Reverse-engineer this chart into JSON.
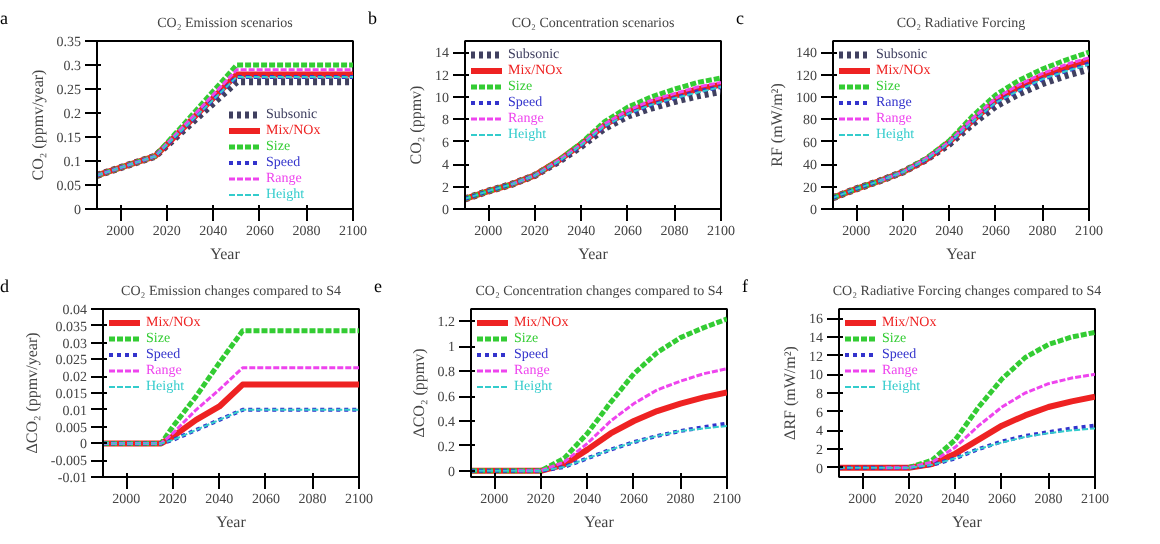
{
  "chart_data": [
    {
      "type": "line",
      "title": "CO₂ Emission scenarios",
      "xlabel": "Year",
      "ylabel": "CO₂ (ppmv/year)",
      "annotations": [
        "a"
      ],
      "legend": "bottom right",
      "x": [
        1990,
        2015,
        2050,
        2100
      ],
      "xlim": [
        1990,
        2100
      ],
      "xticks": [
        2000,
        2020,
        2040,
        2060,
        2080,
        2100
      ],
      "ylim": [
        0,
        0.35
      ],
      "yticks": [
        0,
        0.05,
        0.1,
        0.15,
        0.2,
        0.25,
        0.3,
        0.35
      ],
      "series": [
        {
          "name": "Subsonic",
          "color": "#404060",
          "line_style": "dotted",
          "values": [
            0.07,
            0.11,
            0.265,
            0.265
          ]
        },
        {
          "name": "Mix/NOx",
          "color": "#ee2222",
          "line_style": "solid",
          "values": [
            0.07,
            0.11,
            0.28,
            0.28
          ]
        },
        {
          "name": "Size",
          "color": "#33cc33",
          "line_style": "dashed",
          "values": [
            0.07,
            0.11,
            0.3,
            0.3
          ]
        },
        {
          "name": "Speed",
          "color": "#3333cc",
          "line_style": "dotted",
          "values": [
            0.07,
            0.11,
            0.275,
            0.275
          ]
        },
        {
          "name": "Range",
          "color": "#ee44ee",
          "line_style": "dashed",
          "values": [
            0.07,
            0.11,
            0.29,
            0.29
          ]
        },
        {
          "name": "Height",
          "color": "#33cccc",
          "line_style": "dashed",
          "values": [
            0.07,
            0.11,
            0.275,
            0.275
          ]
        }
      ]
    },
    {
      "type": "line",
      "title": "CO₂ Concentration scenarios",
      "xlabel": "Year",
      "ylabel": "CO₂ (ppmv)",
      "annotations": [
        "b"
      ],
      "legend": "top left",
      "x": [
        1990,
        2000,
        2010,
        2020,
        2030,
        2040,
        2050,
        2060,
        2070,
        2080,
        2090,
        2100
      ],
      "xlim": [
        1990,
        2100
      ],
      "xticks": [
        2000,
        2020,
        2040,
        2060,
        2080,
        2100
      ],
      "ylim": [
        0,
        15
      ],
      "yticks": [
        0,
        2,
        4,
        6,
        8,
        10,
        12,
        14
      ],
      "series": [
        {
          "name": "Subsonic",
          "color": "#404060",
          "line_style": "dotted",
          "values": [
            0.9,
            1.6,
            2.2,
            3.0,
            4.2,
            5.6,
            7.2,
            8.3,
            9.0,
            9.6,
            10.1,
            10.5
          ]
        },
        {
          "name": "Mix/NOx",
          "color": "#ee2222",
          "line_style": "solid",
          "values": [
            0.9,
            1.6,
            2.2,
            3.0,
            4.3,
            5.8,
            7.5,
            8.7,
            9.5,
            10.1,
            10.7,
            11.1
          ]
        },
        {
          "name": "Size",
          "color": "#33cc33",
          "line_style": "dashed",
          "values": [
            0.9,
            1.6,
            2.2,
            3.0,
            4.3,
            5.9,
            7.8,
            9.1,
            10.0,
            10.7,
            11.3,
            11.7
          ]
        },
        {
          "name": "Speed",
          "color": "#3333cc",
          "line_style": "dotted",
          "values": [
            0.9,
            1.6,
            2.2,
            3.0,
            4.2,
            5.7,
            7.4,
            8.5,
            9.3,
            9.9,
            10.5,
            10.9
          ]
        },
        {
          "name": "Range",
          "color": "#ee44ee",
          "line_style": "dashed",
          "values": [
            null,
            null,
            2.2,
            3.0,
            4.3,
            5.8,
            7.6,
            8.8,
            9.7,
            10.3,
            10.9,
            11.3
          ]
        },
        {
          "name": "Height",
          "color": "#33cccc",
          "line_style": "dashed",
          "values": [
            0.9,
            1.6,
            2.2,
            3.0,
            4.2,
            5.7,
            7.4,
            8.5,
            9.3,
            9.9,
            10.4,
            10.9
          ]
        }
      ]
    },
    {
      "type": "line",
      "title": "CO₂ Radiative Forcing",
      "xlabel": "Year",
      "ylabel": "RF (mW/m²)",
      "annotations": [
        "c"
      ],
      "legend": "top left",
      "x": [
        1990,
        2000,
        2010,
        2020,
        2030,
        2040,
        2050,
        2060,
        2070,
        2080,
        2090,
        2100
      ],
      "xlim": [
        1990,
        2100
      ],
      "xticks": [
        2000,
        2020,
        2040,
        2060,
        2080,
        2100
      ],
      "ylim": [
        0,
        150
      ],
      "yticks": [
        0,
        20,
        40,
        60,
        80,
        100,
        120,
        140
      ],
      "series": [
        {
          "name": "Subsonic",
          "color": "#404060",
          "line_style": "dotted",
          "values": [
            10,
            18,
            25,
            33,
            44,
            58,
            76,
            92,
            103,
            112,
            119,
            125
          ]
        },
        {
          "name": "Mix/NOx",
          "color": "#ee2222",
          "line_style": "solid",
          "values": [
            10,
            18,
            25,
            33,
            44,
            60,
            79,
            97,
            109,
            119,
            126,
            133
          ]
        },
        {
          "name": "Size",
          "color": "#33cc33",
          "line_style": "dashed",
          "values": [
            10,
            18,
            25,
            33,
            45,
            61,
            83,
            102,
            115,
            125,
            133,
            140
          ]
        },
        {
          "name": "Range",
          "color": "#3333cc",
          "line_style": "dotted",
          "values": [
            10,
            18,
            25,
            33,
            44,
            59,
            78,
            95,
            106,
            116,
            123,
            130
          ]
        },
        {
          "name": "Range",
          "color": "#ee44ee",
          "line_style": "dashed",
          "values": [
            null,
            null,
            25,
            33,
            45,
            60,
            81,
            99,
            111,
            121,
            129,
            135
          ]
        },
        {
          "name": "Height",
          "color": "#33cccc",
          "line_style": "dashed",
          "values": [
            10,
            18,
            25,
            33,
            44,
            59,
            78,
            95,
            106,
            116,
            123,
            129
          ]
        }
      ]
    },
    {
      "type": "line",
      "title": "CO₂ Emission changes compared to S4",
      "xlabel": "Year",
      "ylabel": "ΔCO₂ (ppmv/year)",
      "annotations": [
        "d"
      ],
      "legend": "top left",
      "x": [
        1990,
        2015,
        2020,
        2030,
        2040,
        2050,
        2100
      ],
      "xlim": [
        1990,
        2100
      ],
      "xticks": [
        2000,
        2020,
        2040,
        2060,
        2080,
        2100
      ],
      "ylim": [
        -0.01,
        0.04
      ],
      "yticks": [
        -0.01,
        -0.005,
        0,
        0.005,
        0.01,
        0.015,
        0.02,
        0.025,
        0.03,
        0.035,
        0.04
      ],
      "series": [
        {
          "name": "Mix/NOx",
          "color": "#ee2222",
          "line_style": "solid",
          "values": [
            0,
            0,
            0.002,
            0.007,
            0.011,
            0.0175,
            0.0175
          ]
        },
        {
          "name": "Size",
          "color": "#33cc33",
          "line_style": "dashed",
          "values": [
            0,
            0,
            0.005,
            0.014,
            0.024,
            0.0335,
            0.0335
          ]
        },
        {
          "name": "Speed",
          "color": "#3333cc",
          "line_style": "dotted",
          "values": [
            0,
            0,
            0.001,
            0.004,
            0.007,
            0.01,
            0.01
          ]
        },
        {
          "name": "Range",
          "color": "#ee44ee",
          "line_style": "dashed",
          "values": [
            0,
            0,
            0.003,
            0.01,
            0.016,
            0.0225,
            0.0225
          ]
        },
        {
          "name": "Height",
          "color": "#33cccc",
          "line_style": "dashed",
          "values": [
            0,
            0,
            0.001,
            0.004,
            0.007,
            0.01,
            0.01
          ]
        }
      ]
    },
    {
      "type": "line",
      "title": "CO₂ Concentration changes compared to S4",
      "xlabel": "Year",
      "ylabel": "ΔCO₂ (ppmv)",
      "annotations": [
        "e"
      ],
      "legend": "top left",
      "x": [
        1990,
        2000,
        2010,
        2020,
        2030,
        2040,
        2050,
        2060,
        2070,
        2080,
        2090,
        2100
      ],
      "xlim": [
        1990,
        2100
      ],
      "xticks": [
        2000,
        2020,
        2040,
        2060,
        2080,
        2100
      ],
      "ylim": [
        -0.05,
        1.3
      ],
      "yticks": [
        0,
        0.2,
        0.4,
        0.6,
        0.8,
        1,
        1.2
      ],
      "series": [
        {
          "name": "Mix/NOx",
          "color": "#ee2222",
          "line_style": "solid",
          "values": [
            0,
            0,
            0,
            0,
            0.05,
            0.17,
            0.3,
            0.4,
            0.48,
            0.54,
            0.59,
            0.63
          ]
        },
        {
          "name": "Size",
          "color": "#33cc33",
          "line_style": "dashed",
          "values": [
            0,
            0,
            0,
            0,
            0.1,
            0.3,
            0.55,
            0.78,
            0.95,
            1.07,
            1.15,
            1.22
          ]
        },
        {
          "name": "Speed",
          "color": "#3333cc",
          "line_style": "dotted",
          "values": [
            0,
            0,
            0,
            0,
            0.03,
            0.1,
            0.17,
            0.23,
            0.28,
            0.32,
            0.35,
            0.38
          ]
        },
        {
          "name": "Range",
          "color": "#ee44ee",
          "line_style": "dashed",
          "values": [
            null,
            null,
            0,
            0,
            0.07,
            0.22,
            0.4,
            0.54,
            0.65,
            0.72,
            0.78,
            0.82
          ]
        },
        {
          "name": "Height",
          "color": "#33cccc",
          "line_style": "dashed",
          "values": [
            0,
            0,
            0,
            0,
            0.03,
            0.1,
            0.17,
            0.23,
            0.28,
            0.32,
            0.34,
            0.36
          ]
        }
      ]
    },
    {
      "type": "line",
      "title": "CO₂ Radiative Forcing changes compared to S4",
      "xlabel": "Year",
      "ylabel": "ΔRF (mW/m²)",
      "annotations": [
        "f"
      ],
      "legend": "top left",
      "x": [
        1990,
        2000,
        2010,
        2020,
        2030,
        2040,
        2050,
        2060,
        2070,
        2080,
        2090,
        2100
      ],
      "xlim": [
        1990,
        2100
      ],
      "xticks": [
        2000,
        2020,
        2040,
        2060,
        2080,
        2100
      ],
      "ylim": [
        -1,
        17
      ],
      "yticks": [
        0,
        2,
        4,
        6,
        8,
        10,
        12,
        14,
        16
      ],
      "series": [
        {
          "name": "Mix/NOx",
          "color": "#ee2222",
          "line_style": "solid",
          "values": [
            0,
            0,
            0,
            0,
            0.4,
            1.5,
            3,
            4.5,
            5.6,
            6.5,
            7.1,
            7.6
          ]
        },
        {
          "name": "Size",
          "color": "#33cc33",
          "line_style": "dashed",
          "values": [
            null,
            null,
            null,
            0,
            0.8,
            3,
            6.5,
            9.5,
            11.8,
            13.2,
            14,
            14.5
          ]
        },
        {
          "name": "Speed",
          "color": "#3333cc",
          "line_style": "dotted",
          "values": [
            0,
            0,
            0,
            0,
            0.3,
            1,
            2,
            2.8,
            3.4,
            3.8,
            4.2,
            4.5
          ]
        },
        {
          "name": "Range",
          "color": "#ee44ee",
          "line_style": "dashed",
          "values": [
            null,
            null,
            0,
            0,
            0.6,
            2.2,
            4.5,
            6.5,
            8,
            9,
            9.6,
            10
          ]
        },
        {
          "name": "Height",
          "color": "#33cccc",
          "line_style": "dashed",
          "values": [
            0,
            0,
            0,
            0,
            0.3,
            1,
            2,
            2.7,
            3.3,
            3.7,
            4,
            4.2
          ]
        }
      ]
    }
  ]
}
